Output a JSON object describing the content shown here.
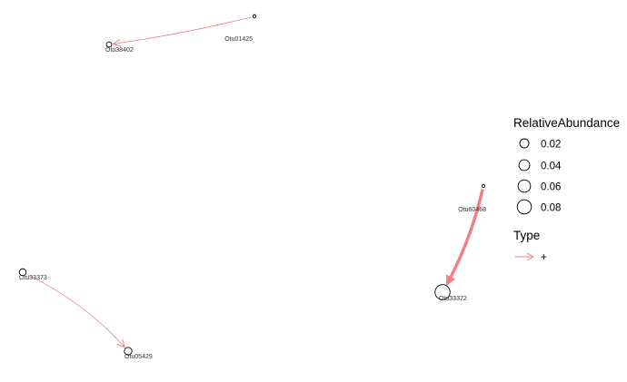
{
  "nodes": [
    {
      "id": "Otu01425",
      "label": "Otu01425",
      "abundance": 0.0055
    },
    {
      "id": "Otu38402",
      "label": "Otu38402",
      "abundance": 0.02
    },
    {
      "id": "Otu60468",
      "label": "Otu60468",
      "abundance": 0.0055
    },
    {
      "id": "Otu33372",
      "label": "Otu33372",
      "abundance": 0.085
    },
    {
      "id": "Otu33373",
      "label": "Otu33373",
      "abundance": 0.03
    },
    {
      "id": "Otu05429",
      "label": "Otu05429",
      "abundance": 0.035
    }
  ],
  "edges": [
    {
      "from": "Otu01425",
      "to": "Otu38402",
      "type": "+",
      "weight": 1
    },
    {
      "from": "Otu60468",
      "to": "Otu33372",
      "type": "+",
      "weight": 4
    },
    {
      "from": "Otu33373",
      "to": "Otu05429",
      "type": "+",
      "weight": 1
    }
  ],
  "edge_color": "#F08080",
  "node_stroke_color": "#000000",
  "legend": {
    "size_title": "RelativeAbundance",
    "size_items": [
      {
        "label": "0.02",
        "value": 0.02
      },
      {
        "label": "0.04",
        "value": 0.04
      },
      {
        "label": "0.06",
        "value": 0.06
      },
      {
        "label": "0.08",
        "value": 0.08
      }
    ],
    "type_title": "Type",
    "type_items": [
      {
        "label": "+"
      }
    ]
  }
}
